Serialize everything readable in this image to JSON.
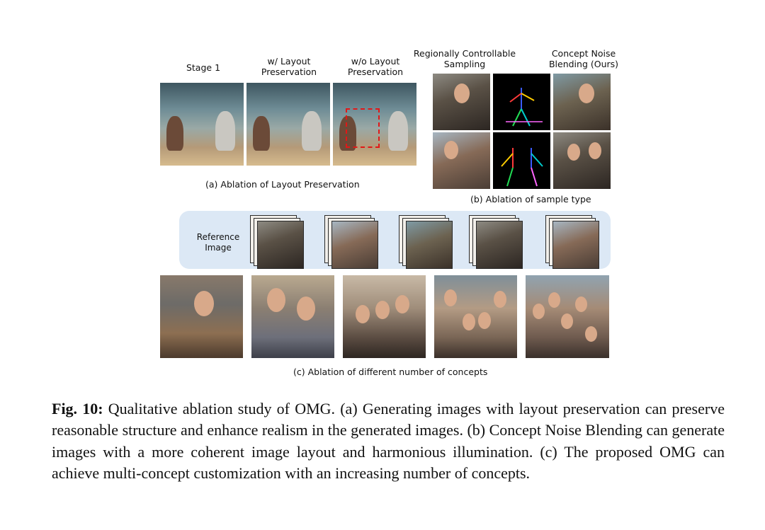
{
  "panel_a": {
    "headers": [
      "Stage 1",
      "w/ Layout\nPreservation",
      "w/o Layout\nPreservation"
    ],
    "subcaption": "(a) Ablation of Layout Preservation"
  },
  "panel_b": {
    "headers": [
      "Regionally Controllable\nSampling",
      "Concept Noise\nBlending (Ours)"
    ],
    "subcaption": "(b) Ablation of sample type"
  },
  "panel_c": {
    "reference_label": "Reference\nImage",
    "subcaption": "(c) Ablation of different number of concepts"
  },
  "caption": {
    "label": "Fig. 10:",
    "text": " Qualitative ablation study of OMG. (a) Generating images with layout preservation can preserve reasonable structure and enhance realism in the generated images. (b) Concept Noise Blending can generate images with a more coherent image layout and harmonious illumination. (c) The proposed OMG can achieve multi-concept customization with an increasing number of concepts."
  },
  "colors": {
    "reference_band": "#dce8f5",
    "dashed_box": "#e11818"
  }
}
